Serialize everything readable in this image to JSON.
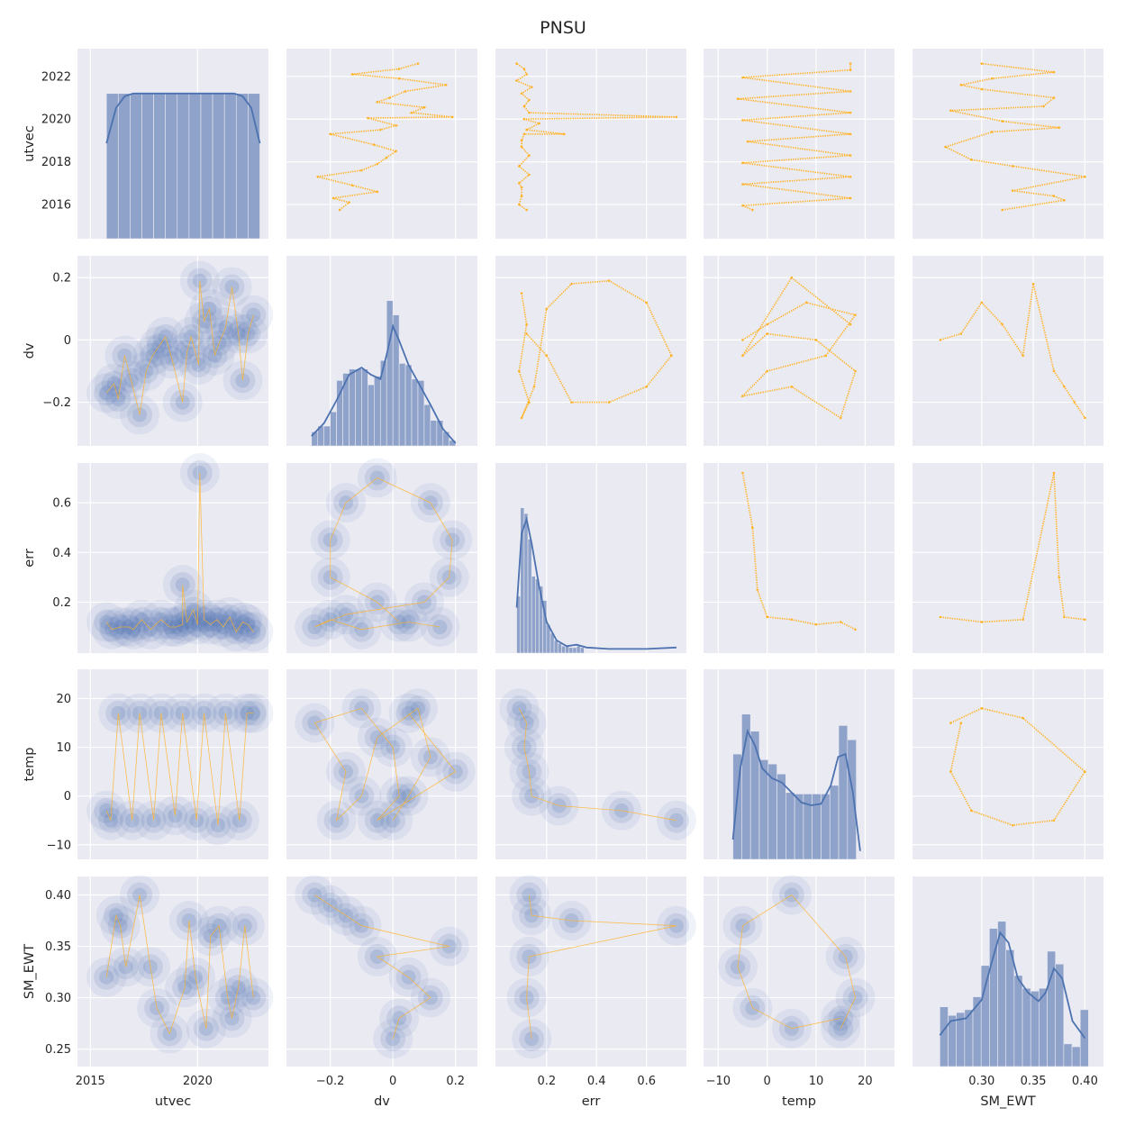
{
  "title": "PNSU",
  "colors": {
    "hist_fill": "#8fa2c9",
    "hist_edge": "#eaeaf2",
    "kde_line": "#4c72b0",
    "scatter": "#ffb327",
    "kde_fill": "#4c72b0",
    "panel_bg": "#eaeaf2",
    "grid": "#ffffff"
  },
  "chart_data": {
    "type": "scatter",
    "subtype": "pairplot",
    "grid": true,
    "variables": [
      "utvec",
      "dv",
      "err",
      "temp",
      "SM_EWT"
    ],
    "diagonal": "histogram+kde",
    "upper": "scatter",
    "lower": "kde-filled-contours",
    "axes": {
      "utvec": {
        "range": [
          2014.4,
          2023.3
        ],
        "ticks": [
          2016,
          2018,
          2020,
          2022
        ],
        "xticks": [
          2015,
          2020
        ]
      },
      "dv": {
        "range": [
          -0.34,
          0.27
        ],
        "ticks": [
          -0.2,
          0.0,
          0.2
        ]
      },
      "err": {
        "range": [
          -0.005,
          0.76
        ],
        "ticks": [
          0.2,
          0.4,
          0.6
        ]
      },
      "temp": {
        "range": [
          -13,
          26
        ],
        "ticks": [
          -10,
          0,
          10,
          20
        ]
      },
      "SM_EWT": {
        "range": [
          0.233,
          0.418
        ],
        "ticks": [
          0.25,
          0.3,
          0.35,
          0.4
        ],
        "xticks": [
          0.3,
          0.35,
          0.4
        ]
      }
    },
    "histograms": {
      "utvec": {
        "edges": [
          2015.75,
          2016.3,
          2016.85,
          2017.4,
          2017.95,
          2018.5,
          2019.05,
          2019.6,
          2020.15,
          2020.7,
          2021.25,
          2021.8,
          2022.35,
          2022.9
        ],
        "density": [
          1,
          1,
          1,
          1,
          1,
          1,
          1,
          1,
          1,
          1,
          1,
          1,
          1
        ],
        "kde_x": [
          2015.75,
          2016.2,
          2016.6,
          2017.0,
          2018.0,
          2019.0,
          2020.0,
          2021.0,
          2021.7,
          2022.1,
          2022.5,
          2022.9
        ],
        "kde_y": [
          0.65,
          0.9,
          0.98,
          1,
          1,
          1,
          1,
          1,
          1,
          0.98,
          0.9,
          0.65
        ]
      },
      "dv": {
        "edges": [
          -0.26,
          -0.24,
          -0.22,
          -0.2,
          -0.18,
          -0.16,
          -0.14,
          -0.12,
          -0.1,
          -0.08,
          -0.06,
          -0.04,
          -0.02,
          0.0,
          0.02,
          0.04,
          0.06,
          0.08,
          0.1,
          0.12,
          0.14,
          0.16,
          0.18,
          0.2
        ],
        "density": [
          0.08,
          0.12,
          0.12,
          0.22,
          0.44,
          0.49,
          0.52,
          0.52,
          0.52,
          0.41,
          0.47,
          0.58,
          1.0,
          0.9,
          0.56,
          0.55,
          0.45,
          0.44,
          0.27,
          0.16,
          0.16,
          0.08,
          0.02
        ],
        "kde_x": [
          -0.26,
          -0.22,
          -0.18,
          -0.14,
          -0.1,
          -0.07,
          -0.04,
          -0.02,
          0.0,
          0.02,
          0.05,
          0.08,
          0.12,
          0.16,
          0.2
        ],
        "kde_y": [
          0.05,
          0.14,
          0.3,
          0.48,
          0.53,
          0.48,
          0.45,
          0.62,
          0.82,
          0.72,
          0.55,
          0.43,
          0.27,
          0.1,
          0.0
        ]
      },
      "err": {
        "edges": [
          0.08,
          0.095,
          0.11,
          0.125,
          0.14,
          0.155,
          0.17,
          0.185,
          0.2,
          0.215,
          0.23,
          0.245,
          0.26,
          0.275,
          0.29,
          0.305,
          0.32,
          0.335,
          0.35
        ],
        "density": [
          0.38,
          1.0,
          0.96,
          0.78,
          0.52,
          0.5,
          0.45,
          0.35,
          0.18,
          0.12,
          0.07,
          0.05,
          0.03,
          0.03,
          0.02,
          0.02,
          0.03,
          0.02
        ],
        "kde_x": [
          0.08,
          0.1,
          0.12,
          0.14,
          0.17,
          0.2,
          0.24,
          0.28,
          0.32,
          0.36,
          0.45,
          0.6,
          0.72
        ],
        "kde_y": [
          0.3,
          0.82,
          0.92,
          0.75,
          0.45,
          0.2,
          0.07,
          0.03,
          0.04,
          0.02,
          0.01,
          0.01,
          0.02
        ]
      },
      "temp": {
        "edges": [
          -7,
          -5.2,
          -3.4,
          -1.6,
          0.2,
          2.0,
          3.8,
          5.6,
          7.4,
          9.2,
          11.0,
          12.8,
          14.6,
          16.4,
          18.2
        ],
        "density": [
          0.72,
          1.0,
          0.88,
          0.68,
          0.65,
          0.58,
          0.45,
          0.44,
          0.44,
          0.44,
          0.44,
          0.5,
          0.92,
          0.82
        ],
        "kde_x": [
          -7,
          -5.5,
          -4,
          -2.5,
          -1,
          1,
          3,
          5,
          7,
          9,
          11,
          13,
          14.5,
          16,
          17.5,
          19
        ],
        "kde_y": [
          0.12,
          0.62,
          0.88,
          0.78,
          0.62,
          0.55,
          0.52,
          0.45,
          0.38,
          0.36,
          0.37,
          0.5,
          0.7,
          0.72,
          0.45,
          0.04
        ]
      },
      "SM_EWT": {
        "edges": [
          0.2595,
          0.2675,
          0.2755,
          0.2835,
          0.2915,
          0.2995,
          0.3075,
          0.3155,
          0.3235,
          0.3315,
          0.3395,
          0.3475,
          0.3555,
          0.3635,
          0.3715,
          0.3795,
          0.3875,
          0.3955,
          0.4035
        ],
        "density": [
          0.4,
          0.34,
          0.36,
          0.38,
          0.47,
          0.69,
          0.95,
          1.0,
          0.8,
          0.62,
          0.53,
          0.51,
          0.53,
          0.79,
          0.7,
          0.14,
          0.12,
          0.38
        ],
        "kde_x": [
          0.2595,
          0.27,
          0.285,
          0.3,
          0.31,
          0.318,
          0.326,
          0.335,
          0.345,
          0.355,
          0.362,
          0.37,
          0.378,
          0.388,
          0.4
        ],
        "kde_y": [
          0.2,
          0.3,
          0.32,
          0.45,
          0.72,
          0.92,
          0.85,
          0.6,
          0.5,
          0.44,
          0.5,
          0.67,
          0.6,
          0.3,
          0.18
        ]
      }
    },
    "series": [
      {
        "x": "dv",
        "y": "utvec",
        "points": [
          [
            -0.17,
            2015.75
          ],
          [
            -0.14,
            2016.1
          ],
          [
            -0.19,
            2016.3
          ],
          [
            -0.05,
            2016.6
          ],
          [
            -0.13,
            2016.9
          ],
          [
            -0.24,
            2017.3
          ],
          [
            -0.1,
            2017.6
          ],
          [
            -0.05,
            2017.9
          ],
          [
            -0.02,
            2018.2
          ],
          [
            0.01,
            2018.5
          ],
          [
            -0.06,
            2018.8
          ],
          [
            -0.2,
            2019.3
          ],
          [
            -0.04,
            2019.5
          ],
          [
            0.01,
            2019.7
          ],
          [
            -0.08,
            2020.05
          ],
          [
            0.19,
            2020.1
          ],
          [
            0.06,
            2020.3
          ],
          [
            0.1,
            2020.55
          ],
          [
            -0.05,
            2020.8
          ],
          [
            -0.01,
            2021.0
          ],
          [
            0.04,
            2021.3
          ],
          [
            0.17,
            2021.6
          ],
          [
            0.02,
            2021.9
          ],
          [
            -0.13,
            2022.1
          ],
          [
            0.02,
            2022.35
          ],
          [
            0.08,
            2022.6
          ]
        ]
      },
      {
        "x": "err",
        "y": "utvec",
        "points": [
          [
            0.12,
            2015.75
          ],
          [
            0.09,
            2016.0
          ],
          [
            0.1,
            2016.4
          ],
          [
            0.1,
            2016.8
          ],
          [
            0.09,
            2017.0
          ],
          [
            0.13,
            2017.4
          ],
          [
            0.09,
            2017.8
          ],
          [
            0.13,
            2018.3
          ],
          [
            0.1,
            2018.7
          ],
          [
            0.1,
            2019.0
          ],
          [
            0.11,
            2019.3
          ],
          [
            0.27,
            2019.3
          ],
          [
            0.12,
            2019.5
          ],
          [
            0.17,
            2019.8
          ],
          [
            0.11,
            2020.0
          ],
          [
            0.72,
            2020.1
          ],
          [
            0.13,
            2020.3
          ],
          [
            0.11,
            2020.6
          ],
          [
            0.13,
            2020.9
          ],
          [
            0.1,
            2021.2
          ],
          [
            0.14,
            2021.5
          ],
          [
            0.08,
            2021.8
          ],
          [
            0.12,
            2022.1
          ],
          [
            0.11,
            2022.35
          ],
          [
            0.08,
            2022.6
          ]
        ]
      },
      {
        "x": "temp",
        "y": "utvec",
        "points": [
          [
            -3,
            2015.75
          ],
          [
            -5,
            2015.95
          ],
          [
            17,
            2016.3
          ],
          [
            -5,
            2016.95
          ],
          [
            17,
            2017.3
          ],
          [
            -5,
            2017.95
          ],
          [
            17,
            2018.3
          ],
          [
            -4,
            2018.95
          ],
          [
            17,
            2019.3
          ],
          [
            -5,
            2019.95
          ],
          [
            17,
            2020.3
          ],
          [
            -6,
            2020.95
          ],
          [
            17,
            2021.3
          ],
          [
            -5,
            2021.95
          ],
          [
            17,
            2022.3
          ],
          [
            17,
            2022.6
          ]
        ]
      },
      {
        "x": "SM_EWT",
        "y": "utvec",
        "points": [
          [
            0.32,
            2015.75
          ],
          [
            0.38,
            2016.2
          ],
          [
            0.37,
            2016.4
          ],
          [
            0.33,
            2016.65
          ],
          [
            0.4,
            2017.3
          ],
          [
            0.33,
            2017.8
          ],
          [
            0.29,
            2018.1
          ],
          [
            0.265,
            2018.7
          ],
          [
            0.31,
            2019.4
          ],
          [
            0.375,
            2019.6
          ],
          [
            0.32,
            2019.9
          ],
          [
            0.27,
            2020.4
          ],
          [
            0.36,
            2020.6
          ],
          [
            0.37,
            2021.0
          ],
          [
            0.3,
            2021.4
          ],
          [
            0.28,
            2021.6
          ],
          [
            0.31,
            2021.9
          ],
          [
            0.37,
            2022.2
          ],
          [
            0.3,
            2022.6
          ]
        ]
      },
      {
        "x": "err",
        "y": "dv",
        "points": [
          [
            0.1,
            0.15
          ],
          [
            0.12,
            0.05
          ],
          [
            0.09,
            -0.1
          ],
          [
            0.13,
            -0.2
          ],
          [
            0.1,
            -0.25
          ],
          [
            0.15,
            -0.15
          ],
          [
            0.2,
            0.1
          ],
          [
            0.3,
            0.18
          ],
          [
            0.45,
            0.19
          ],
          [
            0.6,
            0.12
          ],
          [
            0.7,
            -0.05
          ],
          [
            0.6,
            -0.15
          ],
          [
            0.45,
            -0.2
          ],
          [
            0.3,
            -0.2
          ],
          [
            0.2,
            -0.05
          ],
          [
            0.12,
            0.02
          ]
        ]
      },
      {
        "x": "temp",
        "y": "dv",
        "points": [
          [
            -5,
            0.0
          ],
          [
            0,
            0.05
          ],
          [
            8,
            0.12
          ],
          [
            18,
            0.08
          ],
          [
            12,
            -0.05
          ],
          [
            0,
            -0.1
          ],
          [
            -5,
            -0.18
          ],
          [
            5,
            -0.15
          ],
          [
            15,
            -0.25
          ],
          [
            18,
            -0.1
          ],
          [
            10,
            0.0
          ],
          [
            0,
            0.02
          ],
          [
            -5,
            -0.05
          ],
          [
            5,
            0.2
          ],
          [
            17,
            0.05
          ]
        ]
      },
      {
        "x": "SM_EWT",
        "y": "dv",
        "points": [
          [
            0.26,
            0.0
          ],
          [
            0.28,
            0.02
          ],
          [
            0.3,
            0.12
          ],
          [
            0.32,
            0.05
          ],
          [
            0.34,
            -0.05
          ],
          [
            0.35,
            0.18
          ],
          [
            0.37,
            -0.1
          ],
          [
            0.38,
            -0.15
          ],
          [
            0.39,
            -0.2
          ],
          [
            0.4,
            -0.25
          ]
        ]
      },
      {
        "x": "temp",
        "y": "err",
        "points": [
          [
            -5,
            0.72
          ],
          [
            -3,
            0.5
          ],
          [
            -2,
            0.25
          ],
          [
            0,
            0.14
          ],
          [
            5,
            0.13
          ],
          [
            10,
            0.11
          ],
          [
            15,
            0.12
          ],
          [
            18,
            0.09
          ]
        ]
      },
      {
        "x": "SM_EWT",
        "y": "err",
        "points": [
          [
            0.26,
            0.14
          ],
          [
            0.3,
            0.12
          ],
          [
            0.34,
            0.13
          ],
          [
            0.37,
            0.72
          ],
          [
            0.375,
            0.3
          ],
          [
            0.38,
            0.14
          ],
          [
            0.4,
            0.13
          ]
        ]
      },
      {
        "x": "SM_EWT",
        "y": "temp",
        "points": [
          [
            0.27,
            15
          ],
          [
            0.3,
            18
          ],
          [
            0.34,
            16
          ],
          [
            0.4,
            5
          ],
          [
            0.37,
            -5
          ],
          [
            0.33,
            -6
          ],
          [
            0.29,
            -3
          ],
          [
            0.27,
            5
          ],
          [
            0.28,
            15
          ]
        ]
      }
    ]
  }
}
